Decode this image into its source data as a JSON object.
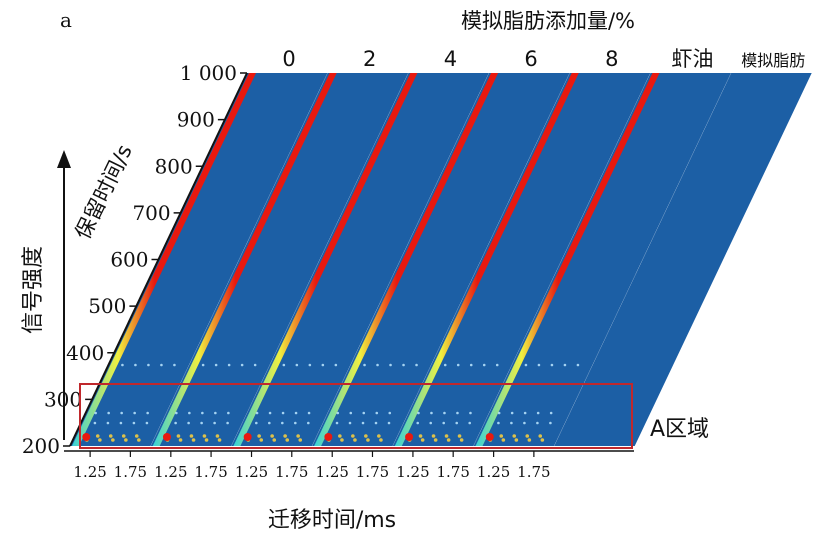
{
  "panel_label": "a",
  "chart_data": {
    "type": "heatmap",
    "title": "模拟脂肪添加量/%",
    "xlabel": "迁移时间/ms",
    "ylabel": "保留时间/s",
    "zlabel": "信号强度",
    "series": [
      {
        "name": "0"
      },
      {
        "name": "2"
      },
      {
        "name": "4"
      },
      {
        "name": "6"
      },
      {
        "name": "8"
      },
      {
        "name": "虾油"
      },
      {
        "name": "模拟脂肪"
      }
    ],
    "x_ticks": [
      "1.25",
      "1.75"
    ],
    "xlim": [
      1.0,
      2.0
    ],
    "y_ticks": [
      "200",
      "300",
      "400",
      "500",
      "600",
      "700",
      "800",
      "900",
      "1 000"
    ],
    "ylim": [
      200,
      1000
    ],
    "annotation": "A区域",
    "colors": {
      "background": "#1c5fa5",
      "reaction_line": "#e8190f",
      "highlight_box": "#c0282c"
    }
  }
}
